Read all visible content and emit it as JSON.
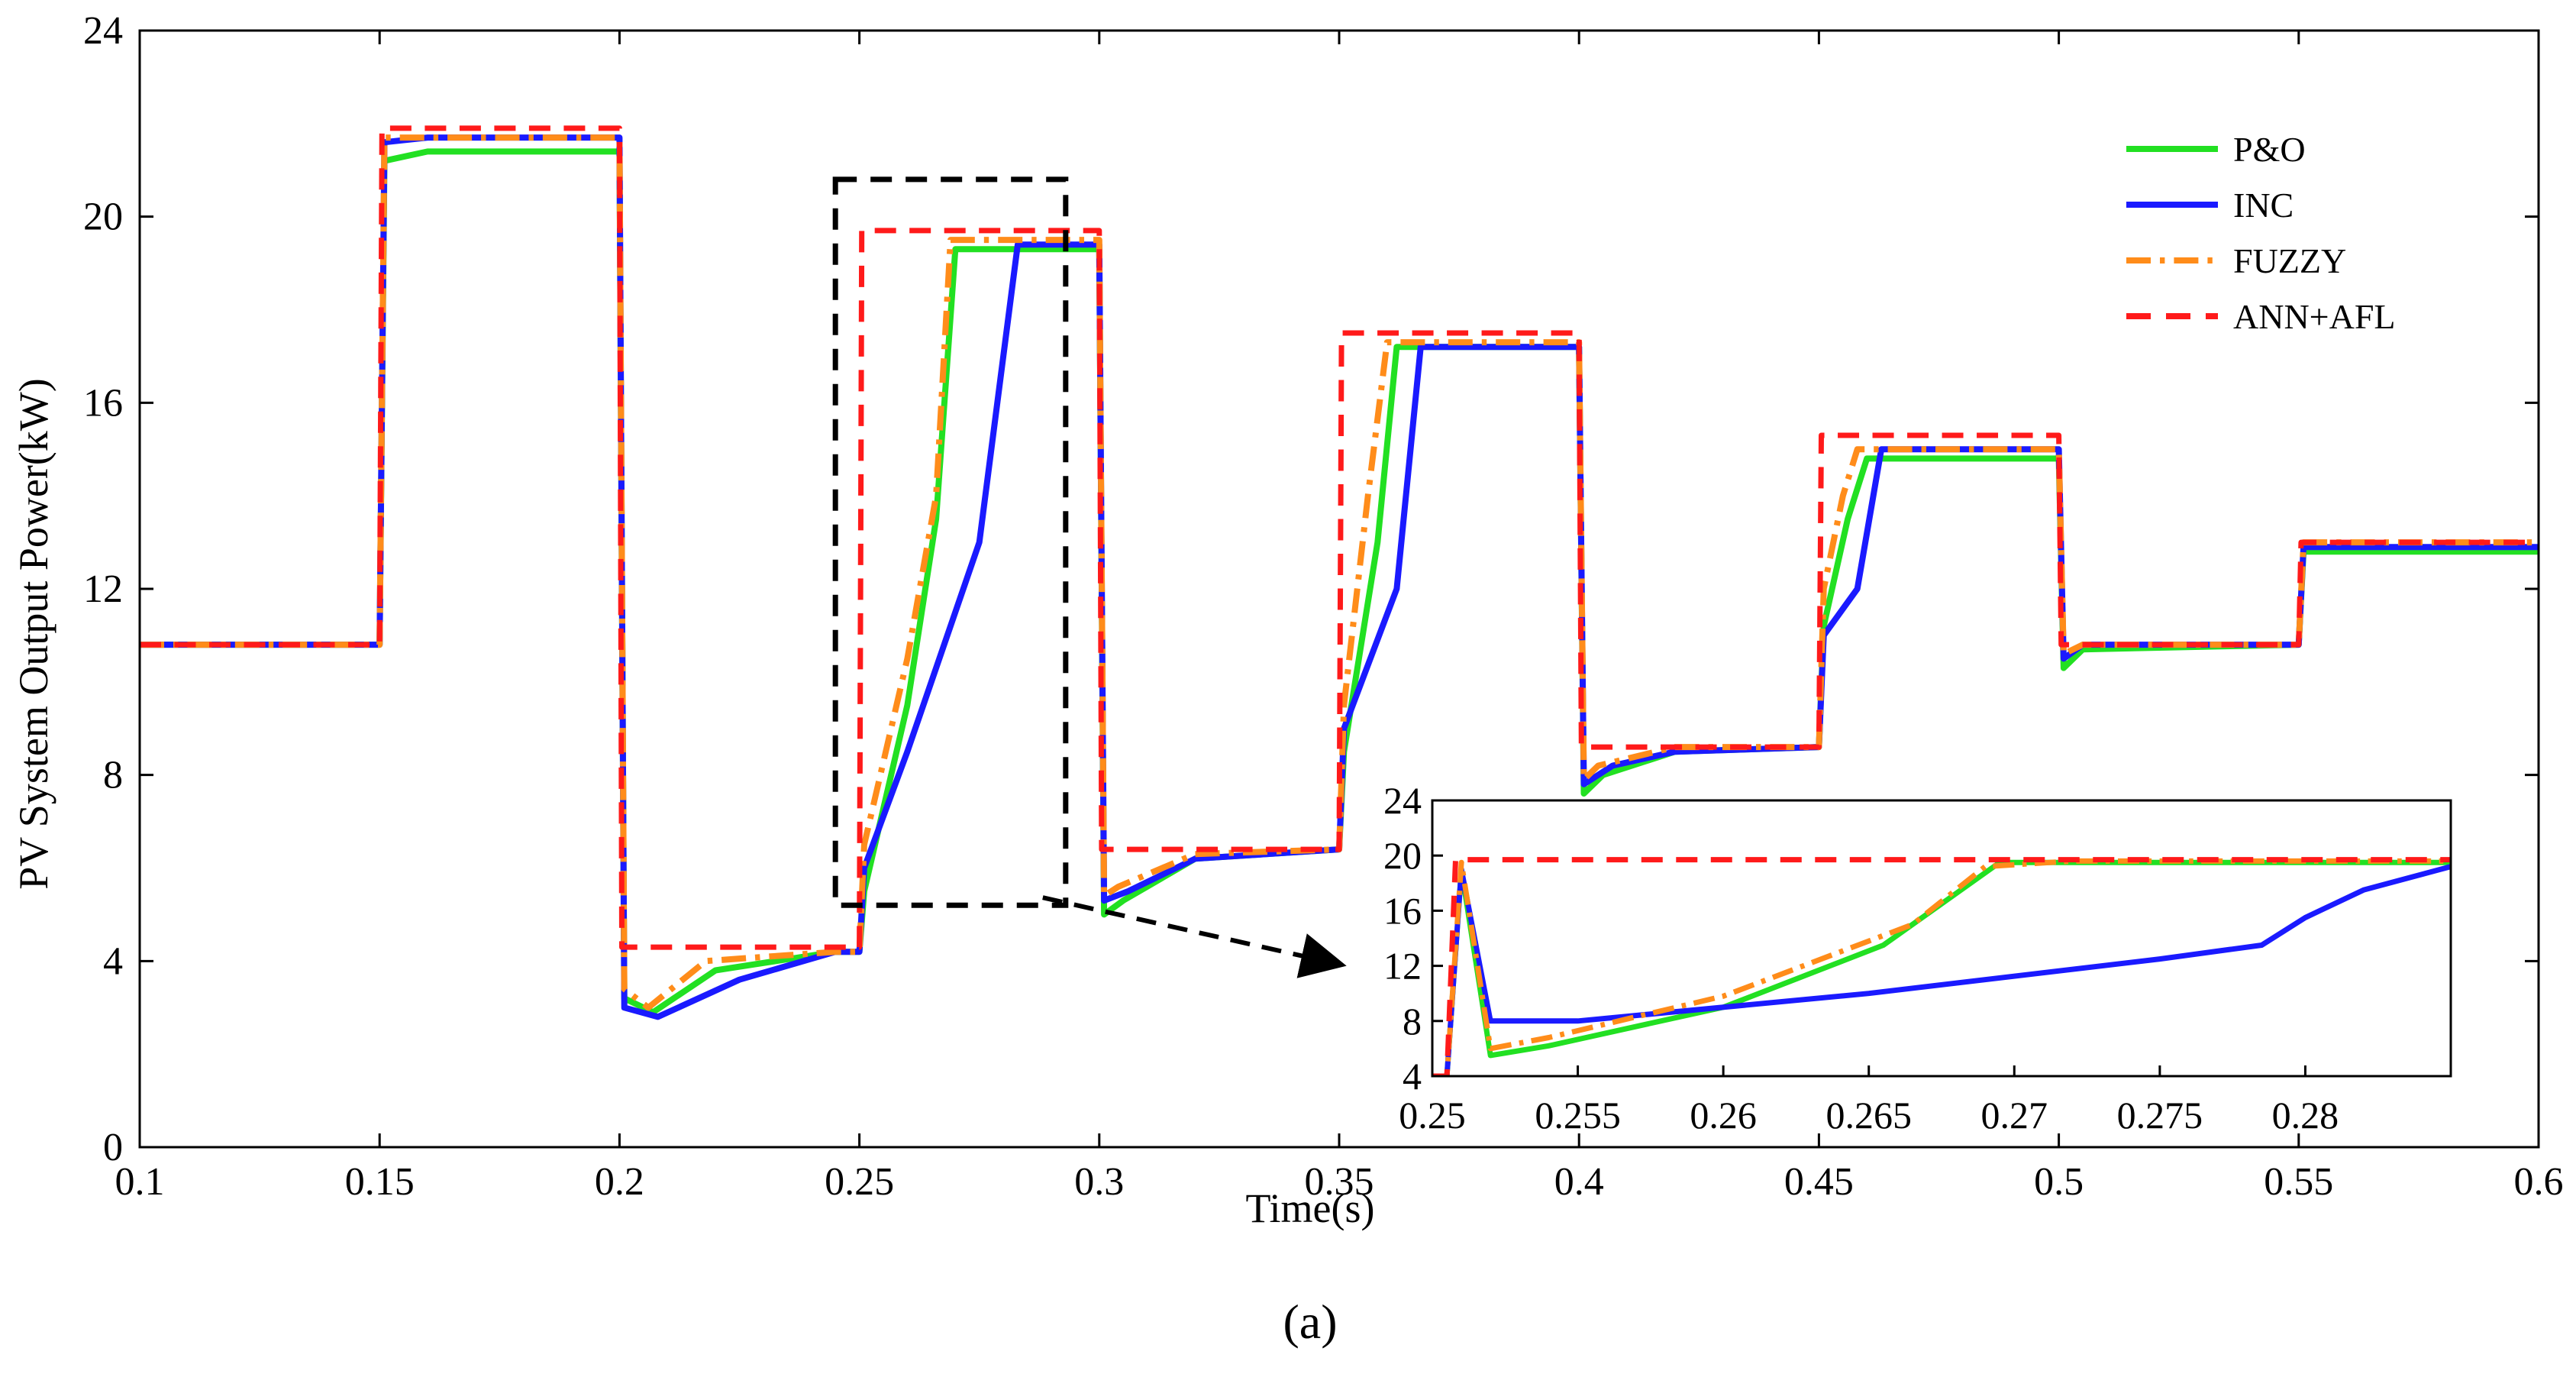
{
  "chart_data": {
    "type": "line",
    "title": "",
    "xlabel": "Time(s)",
    "ylabel": "PV System Output Power(kW)",
    "xlim": [
      0.1,
      0.6
    ],
    "ylim": [
      0,
      24
    ],
    "xticks": [
      0.1,
      0.15,
      0.2,
      0.25,
      0.3,
      0.35,
      0.4,
      0.45,
      0.5,
      0.55,
      0.6
    ],
    "xtick_labels": [
      "0.1",
      "0.15",
      "0.2",
      "0.25",
      "0.3",
      "0.35",
      "0.4",
      "0.45",
      "0.5",
      "0.55",
      "0.6"
    ],
    "yticks": [
      0,
      4,
      8,
      12,
      16,
      20,
      24
    ],
    "ytick_labels": [
      "0",
      "4",
      "8",
      "12",
      "16",
      "20",
      "24"
    ],
    "grid": false,
    "legend_position": "top-right",
    "caption": "(a)",
    "series": [
      {
        "name": "P&O",
        "color": "#22e022",
        "style": "solid",
        "x": [
          0.1,
          0.15,
          0.151,
          0.16,
          0.2,
          0.201,
          0.207,
          0.22,
          0.245,
          0.25,
          0.251,
          0.26,
          0.266,
          0.27,
          0.3,
          0.301,
          0.305,
          0.32,
          0.35,
          0.351,
          0.358,
          0.362,
          0.4,
          0.401,
          0.405,
          0.42,
          0.45,
          0.451,
          0.456,
          0.46,
          0.5,
          0.501,
          0.505,
          0.55,
          0.551,
          0.6
        ],
        "y": [
          10.8,
          10.8,
          21.2,
          21.4,
          21.4,
          3.2,
          2.9,
          3.8,
          4.2,
          4.2,
          5.5,
          9.5,
          13.5,
          19.3,
          19.3,
          5.0,
          5.3,
          6.2,
          6.4,
          8.5,
          13.0,
          17.2,
          17.2,
          7.6,
          8.0,
          8.5,
          8.6,
          11.2,
          13.5,
          14.8,
          14.8,
          10.3,
          10.7,
          10.8,
          12.8,
          12.8
        ]
      },
      {
        "name": "INC",
        "color": "#1a1aff",
        "style": "solid",
        "x": [
          0.1,
          0.15,
          0.151,
          0.16,
          0.2,
          0.201,
          0.208,
          0.225,
          0.245,
          0.25,
          0.251,
          0.26,
          0.275,
          0.283,
          0.3,
          0.301,
          0.306,
          0.32,
          0.35,
          0.351,
          0.362,
          0.367,
          0.4,
          0.401,
          0.407,
          0.42,
          0.45,
          0.451,
          0.458,
          0.463,
          0.5,
          0.501,
          0.505,
          0.55,
          0.551,
          0.6
        ],
        "y": [
          10.8,
          10.8,
          21.6,
          21.7,
          21.7,
          3.0,
          2.8,
          3.6,
          4.2,
          4.2,
          6.0,
          8.5,
          13.0,
          19.4,
          19.4,
          5.3,
          5.5,
          6.2,
          6.4,
          9.0,
          12.0,
          17.2,
          17.2,
          7.8,
          8.2,
          8.5,
          8.6,
          11.0,
          12.0,
          15.0,
          15.0,
          10.5,
          10.8,
          10.8,
          12.9,
          12.9
        ]
      },
      {
        "name": "FUZZY",
        "color": "#ff8c1a",
        "style": "dash-dot",
        "x": [
          0.1,
          0.15,
          0.151,
          0.16,
          0.2,
          0.201,
          0.206,
          0.218,
          0.245,
          0.25,
          0.251,
          0.26,
          0.266,
          0.269,
          0.3,
          0.301,
          0.304,
          0.32,
          0.35,
          0.351,
          0.356,
          0.36,
          0.4,
          0.401,
          0.404,
          0.42,
          0.45,
          0.451,
          0.455,
          0.458,
          0.5,
          0.501,
          0.505,
          0.55,
          0.551,
          0.6
        ],
        "y": [
          10.8,
          10.8,
          21.7,
          21.7,
          21.7,
          3.4,
          3.0,
          4.0,
          4.2,
          4.2,
          6.5,
          10.5,
          14.0,
          19.5,
          19.5,
          5.4,
          5.6,
          6.3,
          6.4,
          9.5,
          14.0,
          17.3,
          17.3,
          7.9,
          8.2,
          8.6,
          8.6,
          12.0,
          14.0,
          15.0,
          15.0,
          10.6,
          10.8,
          10.8,
          13.0,
          13.0
        ]
      },
      {
        "name": "ANN+AFL",
        "color": "#ff1a1a",
        "style": "dashed",
        "x": [
          0.1,
          0.15,
          0.1505,
          0.2,
          0.2005,
          0.25,
          0.2505,
          0.3,
          0.3005,
          0.35,
          0.3505,
          0.4,
          0.4005,
          0.45,
          0.4505,
          0.5,
          0.5005,
          0.55,
          0.5505,
          0.6
        ],
        "y": [
          10.8,
          10.8,
          21.9,
          21.9,
          4.3,
          4.3,
          19.7,
          19.7,
          6.4,
          6.4,
          17.5,
          17.5,
          8.6,
          8.6,
          15.3,
          15.3,
          10.8,
          10.8,
          13.0,
          13.0
        ]
      }
    ],
    "annotations": [
      {
        "type": "zoom-box",
        "x_range": [
          0.245,
          0.293
        ],
        "y_range": [
          5.2,
          20.8
        ]
      },
      {
        "type": "arrow",
        "text": ""
      }
    ],
    "inset": {
      "xlim": [
        0.25,
        0.285
      ],
      "ylim": [
        4,
        24
      ],
      "xticks": [
        0.25,
        0.255,
        0.26,
        0.265,
        0.27,
        0.275,
        0.28
      ],
      "xtick_labels": [
        "0.25",
        "0.255",
        "0.26",
        "0.265",
        "0.27",
        "0.275",
        "0.28"
      ],
      "yticks": [
        4,
        8,
        12,
        16,
        20,
        24
      ],
      "ytick_labels": [
        "4",
        "8",
        "12",
        "16",
        "20",
        "24"
      ],
      "series": [
        {
          "name": "P&O",
          "x": [
            0.25,
            0.2505,
            0.251,
            0.252,
            0.254,
            0.26,
            0.2655,
            0.2675,
            0.2695,
            0.272,
            0.285
          ],
          "y": [
            4,
            4,
            19.0,
            5.5,
            6.2,
            9.0,
            13.5,
            16.5,
            19.5,
            19.5,
            19.5
          ]
        },
        {
          "name": "INC",
          "x": [
            0.25,
            0.2505,
            0.251,
            0.252,
            0.255,
            0.265,
            0.275,
            0.2785,
            0.28,
            0.282,
            0.285
          ],
          "y": [
            4,
            4,
            19.0,
            8.0,
            8.0,
            10.0,
            12.5,
            13.5,
            15.5,
            17.5,
            19.2
          ]
        },
        {
          "name": "FUZZY",
          "x": [
            0.25,
            0.2505,
            0.251,
            0.252,
            0.254,
            0.26,
            0.265,
            0.2665,
            0.269,
            0.272,
            0.285
          ],
          "y": [
            4,
            4,
            19.5,
            6.0,
            6.8,
            9.8,
            13.8,
            15.0,
            19.2,
            19.6,
            19.6
          ]
        },
        {
          "name": "ANN+AFL",
          "x": [
            0.25,
            0.2505,
            0.2508,
            0.2515,
            0.285
          ],
          "y": [
            4,
            4,
            19.7,
            19.7,
            19.7
          ]
        }
      ]
    }
  }
}
